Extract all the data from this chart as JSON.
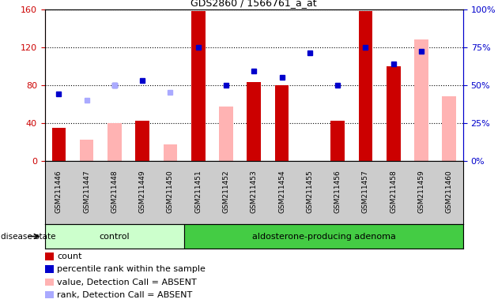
{
  "title": "GDS2860 / 1566761_a_at",
  "samples": [
    "GSM211446",
    "GSM211447",
    "GSM211448",
    "GSM211449",
    "GSM211450",
    "GSM211451",
    "GSM211452",
    "GSM211453",
    "GSM211454",
    "GSM211455",
    "GSM211456",
    "GSM211457",
    "GSM211458",
    "GSM211459",
    "GSM211460"
  ],
  "count": [
    35,
    null,
    null,
    42,
    null,
    158,
    null,
    83,
    80,
    null,
    42,
    158,
    100,
    null,
    null
  ],
  "percentile": [
    44,
    null,
    50,
    53,
    null,
    75,
    50,
    59,
    55,
    71,
    50,
    75,
    64,
    72,
    null
  ],
  "value_absent": [
    null,
    22,
    40,
    null,
    17,
    null,
    57,
    null,
    null,
    null,
    null,
    null,
    null,
    128,
    68
  ],
  "rank_absent": [
    null,
    40,
    50,
    null,
    45,
    null,
    null,
    null,
    null,
    null,
    null,
    null,
    null,
    null,
    null
  ],
  "n_control": 5,
  "ylim_left": [
    0,
    160
  ],
  "ylim_right": [
    0,
    100
  ],
  "yticks_left": [
    0,
    40,
    80,
    120,
    160
  ],
  "yticks_right": [
    0,
    25,
    50,
    75,
    100
  ],
  "ytick_labels_left": [
    "0",
    "40",
    "80",
    "120",
    "160"
  ],
  "ytick_labels_right": [
    "0%",
    "25%",
    "50%",
    "75%",
    "100%"
  ],
  "left_axis_color": "#cc0000",
  "right_axis_color": "#0000cc",
  "bar_color_count": "#cc0000",
  "bar_color_absent_value": "#ffb3b3",
  "dot_color_percentile": "#0000cc",
  "dot_color_absent_rank": "#aaaaff",
  "control_bg": "#ccffcc",
  "adenoma_bg": "#44cc44",
  "xticklabel_bg": "#cccccc",
  "legend_items": [
    {
      "color": "#cc0000",
      "label": "count"
    },
    {
      "color": "#0000cc",
      "label": "percentile rank within the sample"
    },
    {
      "color": "#ffb3b3",
      "label": "value, Detection Call = ABSENT"
    },
    {
      "color": "#aaaaff",
      "label": "rank, Detection Call = ABSENT"
    }
  ]
}
